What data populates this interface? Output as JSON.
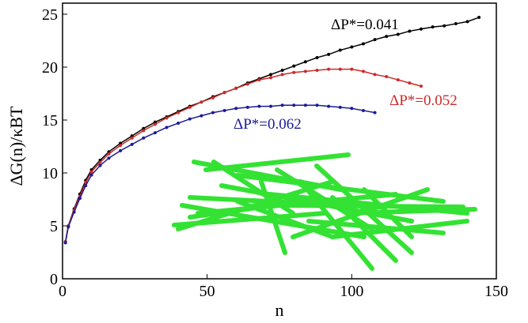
{
  "chart_data": {
    "type": "scatter",
    "x_label": "n",
    "y_label": "ΔG(n)/κBT",
    "xlim": [
      0,
      150
    ],
    "xticks": [
      0,
      50,
      100,
      150
    ],
    "ylim": [
      0,
      25
    ],
    "yticks": [
      0,
      5,
      10,
      15,
      20,
      25
    ],
    "series": [
      {
        "name": "ΔP*=0.041",
        "color": "#000000",
        "x": [
          1,
          2,
          4,
          6,
          8,
          10,
          13,
          16,
          20,
          24,
          28,
          32,
          36,
          40,
          44,
          48,
          52,
          56,
          60,
          64,
          68,
          72,
          76,
          80,
          84,
          88,
          92,
          96,
          100,
          104,
          108,
          112,
          116,
          120,
          124,
          128,
          132,
          136,
          140,
          144
        ],
        "values": [
          3.5,
          5,
          6.6,
          8,
          9.3,
          10.3,
          11.2,
          12,
          12.8,
          13.5,
          14.2,
          14.8,
          15.3,
          15.8,
          16.3,
          16.7,
          17.2,
          17.6,
          18,
          18.5,
          18.9,
          19.3,
          19.7,
          20.1,
          20.5,
          20.9,
          21.2,
          21.6,
          21.9,
          22.2,
          22.6,
          22.9,
          23.1,
          23.4,
          23.6,
          23.8,
          23.9,
          24.1,
          24.3,
          24.7
        ]
      },
      {
        "name": "ΔP*=0.052",
        "color": "#cc2a2a",
        "x": [
          1,
          2,
          4,
          6,
          8,
          10,
          13,
          16,
          20,
          24,
          28,
          32,
          36,
          40,
          44,
          48,
          52,
          56,
          60,
          64,
          68,
          72,
          76,
          80,
          84,
          88,
          92,
          96,
          100,
          104,
          108,
          112,
          116,
          120,
          124
        ],
        "values": [
          3.5,
          5,
          6.5,
          7.8,
          9.1,
          10.1,
          11,
          11.8,
          12.6,
          13.3,
          14,
          14.6,
          15.2,
          15.7,
          16.2,
          16.7,
          17.1,
          17.6,
          18,
          18.4,
          18.8,
          19,
          19.3,
          19.5,
          19.6,
          19.7,
          19.8,
          19.8,
          19.8,
          19.6,
          19.3,
          19.1,
          18.8,
          18.5,
          18.2
        ]
      },
      {
        "name": "ΔP*=0.062",
        "color": "#1a1a9a",
        "x": [
          1,
          2,
          4,
          6,
          8,
          10,
          13,
          16,
          20,
          24,
          28,
          32,
          36,
          40,
          44,
          48,
          52,
          56,
          60,
          64,
          68,
          72,
          76,
          80,
          84,
          88,
          92,
          96,
          100,
          104,
          108
        ],
        "values": [
          3.4,
          4.9,
          6.3,
          7.6,
          8.8,
          9.8,
          10.7,
          11.4,
          12.1,
          12.7,
          13.3,
          13.8,
          14.3,
          14.7,
          15.1,
          15.4,
          15.7,
          15.9,
          16.1,
          16.2,
          16.3,
          16.3,
          16.4,
          16.4,
          16.4,
          16.4,
          16.3,
          16.2,
          16.1,
          15.9,
          15.7
        ]
      }
    ]
  }
}
